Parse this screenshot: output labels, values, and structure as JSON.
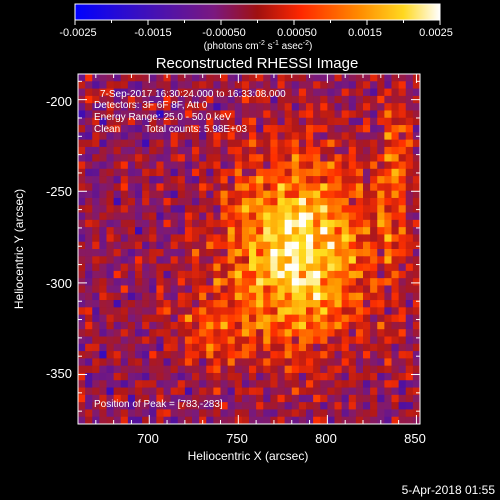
{
  "colorbar": {
    "ticks": [
      "-0.0025",
      "-0.0015",
      "-0.00050",
      "0.00050",
      "0.0015",
      "0.0025"
    ],
    "units_main": "(photons cm",
    "units_exp1": "-2",
    "units_mid": " s",
    "units_exp2": "-1",
    "units_tail": " asec",
    "units_exp3": "-2",
    "units_close": ")"
  },
  "plot": {
    "title": "Reconstructed RHESSI Image",
    "xlabel": "Heliocentric X (arcsec)",
    "ylabel": "Heliocentric Y (arcsec)",
    "x_ticks": [
      "700",
      "750",
      "800",
      "850"
    ],
    "y_ticks": [
      "-200",
      "-250",
      "-300",
      "-350"
    ]
  },
  "annotations": {
    "time_range": "7-Sep-2017 16:30:24.000 to 16:33:08.000",
    "detectors": "Detectors: 3F 6F 8F, Att 0",
    "energy": "Energy Range: 25.0 - 50.0 keV",
    "clean": "Clean",
    "counts": "Total counts: 5.98E+03",
    "peak": "Position of Peak = [783,-283]"
  },
  "footer": {
    "date": "5-Apr-2018 01:55"
  },
  "chart_data": {
    "type": "heatmap",
    "title": "Reconstructed RHESSI Image",
    "xlabel": "Heliocentric X (arcsec)",
    "ylabel": "Heliocentric Y (arcsec)",
    "xlim": [
      660,
      852
    ],
    "ylim": [
      -377,
      -186
    ],
    "x_ticks": [
      700,
      750,
      800,
      850
    ],
    "y_ticks": [
      -200,
      -250,
      -300,
      -350
    ],
    "peak": [
      783,
      -283
    ],
    "colorbar_range": [
      -0.0025,
      0.0025
    ],
    "colorbar_ticks": [
      -0.0025,
      -0.0015,
      -0.0005,
      0.0005,
      0.0015,
      0.0025
    ],
    "colormap": [
      "#0000ff",
      "#5010a0",
      "#7a1a7a",
      "#b01818",
      "#ff3000",
      "#ff9a00",
      "#ffe020",
      "#ffffff"
    ]
  }
}
